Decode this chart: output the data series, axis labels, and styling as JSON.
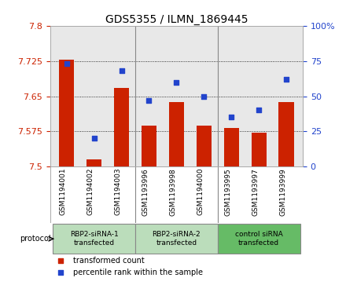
{
  "title": "GDS5355 / ILMN_1869445",
  "samples": [
    "GSM1194001",
    "GSM1194002",
    "GSM1194003",
    "GSM1193996",
    "GSM1193998",
    "GSM1194000",
    "GSM1193995",
    "GSM1193997",
    "GSM1193999"
  ],
  "bar_values": [
    7.727,
    7.515,
    7.668,
    7.588,
    7.638,
    7.588,
    7.583,
    7.572,
    7.638
  ],
  "percentile_values": [
    73,
    20,
    68,
    47,
    60,
    50,
    35,
    40,
    62
  ],
  "ylim_left": [
    7.5,
    7.8
  ],
  "ylim_right": [
    0,
    100
  ],
  "yticks_left": [
    7.5,
    7.575,
    7.65,
    7.725,
    7.8
  ],
  "yticks_right": [
    0,
    25,
    50,
    75,
    100
  ],
  "bar_color": "#cc2200",
  "dot_color": "#2244cc",
  "grid_color": "#000000",
  "protocol_groups": [
    {
      "label": "RBP2-siRNA-1\ntransfected",
      "indices": [
        0,
        1,
        2
      ],
      "color": "#bbddbb"
    },
    {
      "label": "RBP2-siRNA-2\ntransfected",
      "indices": [
        3,
        4,
        5
      ],
      "color": "#bbddbb"
    },
    {
      "label": "control siRNA\ntransfected",
      "indices": [
        6,
        7,
        8
      ],
      "color": "#66bb66"
    }
  ],
  "legend_items": [
    {
      "label": "transformed count",
      "color": "#cc2200"
    },
    {
      "label": "percentile rank within the sample",
      "color": "#2244cc"
    }
  ],
  "bg_color": "#ffffff",
  "plot_bg_color": "#e8e8e8",
  "tick_label_color_left": "#cc2200",
  "tick_label_color_right": "#2244cc"
}
